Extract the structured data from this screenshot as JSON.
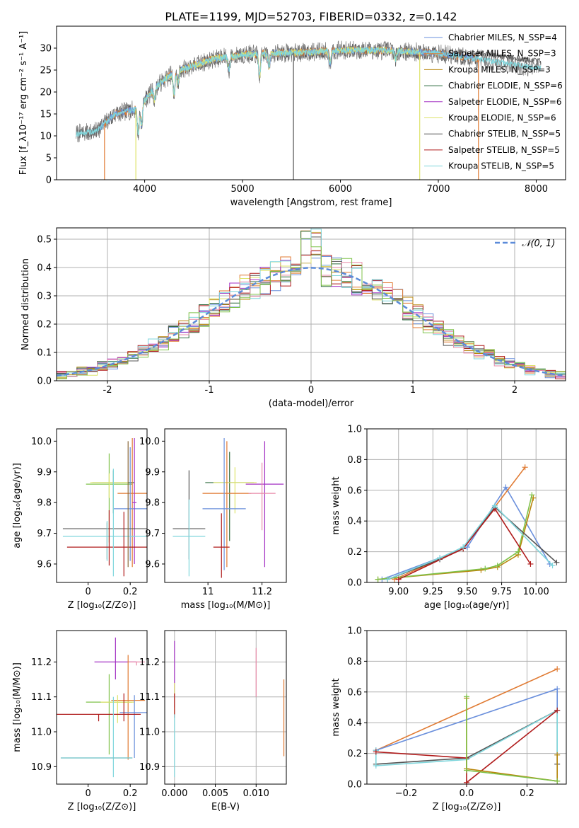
{
  "figure": {
    "title": "PLATE=1199, MJD=52703, FIBERID=0332, z=0.142"
  },
  "colors": {
    "chabrier_miles": "#6a8fdc",
    "salpeter_miles": "#e07a32",
    "kroupa_miles": "#b8860b",
    "chabrier_elodie": "#2e6b3f",
    "salpeter_elodie": "#a431c4",
    "kroupa_elodie": "#dde36a",
    "chabrier_stelib": "#555555",
    "salpeter_stelib": "#b01c1c",
    "kroupa_stelib": "#7fd6dc",
    "extra_pink": "#e88aa8",
    "extra_green": "#7fc24a",
    "extra_brown": "#8b6a3a",
    "normal_curve": "#5b8bd9",
    "grid": "#b0b0b0",
    "spectrum_gray": "#777777"
  },
  "chart_data": [
    {
      "id": "spectrum",
      "type": "line",
      "xlabel": "wavelength [Angstrom, rest frame]",
      "ylabel": "Flux [f_λ10⁻¹⁷ erg cm⁻² s⁻¹ A⁻¹]",
      "xlim": [
        3100,
        8300
      ],
      "ylim": [
        0,
        35
      ],
      "xticks": [
        4000,
        5000,
        6000,
        7000,
        8000
      ],
      "yticks": [
        0,
        5,
        10,
        15,
        20,
        25,
        30
      ],
      "grid": false,
      "legend_position": "top-right",
      "legend": [
        "Chabrier MILES, N_SSP=4",
        "Salpeter MILES, N_SSP=3",
        "Kroupa MILES, N_SSP=3",
        "Chabrier ELODIE, N_SSP=6",
        "Salpeter ELODIE, N_SSP=6",
        "Kroupa ELODIE, N_SSP=6",
        "Chabrier STELIB, N_SSP=5",
        "Salpeter STELIB, N_SSP=5",
        "Kroupa STELIB, N_SSP=5"
      ],
      "continuum": {
        "x": [
          3300,
          3500,
          3700,
          3900,
          4000,
          4100,
          4300,
          4500,
          4700,
          5000,
          5300,
          5600,
          6000,
          6500,
          7000,
          7400,
          8000
        ],
        "y": [
          10.5,
          11,
          15,
          16,
          18,
          21,
          24.5,
          26,
          27.5,
          28.5,
          28.8,
          29,
          29.5,
          29.5,
          28.8,
          27.5,
          25.5
        ]
      },
      "absorption_features": [
        {
          "x": 3934,
          "depth": 6
        },
        {
          "x": 3968,
          "depth": 5
        },
        {
          "x": 4102,
          "depth": 3
        },
        {
          "x": 4300,
          "depth": 5
        },
        {
          "x": 4340,
          "depth": 3
        },
        {
          "x": 4861,
          "depth": 3
        },
        {
          "x": 5175,
          "depth": 5
        },
        {
          "x": 5270,
          "depth": 3
        },
        {
          "x": 5893,
          "depth": 3
        },
        {
          "x": 6563,
          "depth": 2
        }
      ],
      "vertical_spikes": [
        {
          "x": 3590,
          "color": "salpeter_miles"
        },
        {
          "x": 3910,
          "color": "kroupa_elodie"
        },
        {
          "x": 5520,
          "color": "chabrier_stelib"
        },
        {
          "x": 6810,
          "color": "kroupa_elodie"
        },
        {
          "x": 7410,
          "color": "salpeter_miles"
        }
      ]
    },
    {
      "id": "residuals",
      "type": "histogram",
      "xlabel": "(data-model)/error",
      "ylabel": "Normed distribution",
      "xlim": [
        -2.5,
        2.5
      ],
      "ylim": [
        0,
        0.54
      ],
      "xticks": [
        -2,
        -1,
        0,
        1,
        2
      ],
      "yticks": [
        0.0,
        0.1,
        0.2,
        0.3,
        0.4,
        0.5
      ],
      "grid": true,
      "legend_position": "top-right",
      "legend": [
        "𝒩(0, 1)"
      ],
      "bin_width": 0.1
    },
    {
      "id": "age_vs_Z",
      "type": "errorbar",
      "xlabel": "Z [log₁₀(Z/Z⊙)]",
      "ylabel": "age  [log₁₀(age/yr)]",
      "xlim": [
        -0.15,
        0.28
      ],
      "ylim": [
        9.54,
        10.04
      ],
      "xticks": [
        0.0,
        0.2
      ],
      "yticks": [
        9.6,
        9.7,
        9.8,
        9.9,
        10.0
      ],
      "points": [
        {
          "x": 0.12,
          "y": 9.865,
          "xerr": 0.1,
          "yerr_lo": 0.1,
          "yerr_hi": 0.04,
          "color": "chabrier_elodie"
        },
        {
          "x": 0.1,
          "y": 9.86,
          "xerr": 0.11,
          "yerr_lo": 0.19,
          "yerr_hi": 0.1,
          "color": "extra_green"
        },
        {
          "x": 0.1,
          "y": 9.865,
          "xerr": 0.09,
          "yerr_lo": 0.05,
          "yerr_hi": 0.03,
          "color": "kroupa_elodie"
        },
        {
          "x": 0.21,
          "y": 9.83,
          "xerr": 0.07,
          "yerr_lo": 0.24,
          "yerr_hi": 0.18,
          "color": "salpeter_miles"
        },
        {
          "x": 0.2,
          "y": 9.78,
          "xerr": 0.08,
          "yerr_lo": 0.17,
          "yerr_hi": 0.2,
          "color": "chabrier_miles"
        },
        {
          "x": 0.22,
          "y": 9.8,
          "xerr": 0.01,
          "yerr_lo": 0.2,
          "yerr_hi": 0.21,
          "color": "salpeter_elodie"
        },
        {
          "x": 0.09,
          "y": 9.715,
          "xerr": 0.21,
          "yerr_lo": 0.1,
          "yerr_hi": 0.02,
          "color": "chabrier_stelib"
        },
        {
          "x": 0.09,
          "y": 9.69,
          "xerr": 0.21,
          "yerr_lo": 0.08,
          "yerr_hi": 0.05,
          "color": "kroupa_stelib"
        },
        {
          "x": 0.1,
          "y": 9.655,
          "xerr": 0.2,
          "yerr_lo": 0.06,
          "yerr_hi": 0.12,
          "color": "salpeter_stelib"
        },
        {
          "x": 0.12,
          "y": 9.7,
          "xerr": 0.0,
          "yerr_lo": 0.14,
          "yerr_hi": 0.21,
          "color": "kroupa_stelib"
        },
        {
          "x": 0.17,
          "y": 9.66,
          "xerr": 0.0,
          "yerr_lo": 0.1,
          "yerr_hi": 0.11,
          "color": "salpeter_stelib"
        },
        {
          "x": 0.19,
          "y": 9.8,
          "xerr": 0.0,
          "yerr_lo": 0.21,
          "yerr_hi": 0.2,
          "color": "extra_brown"
        }
      ]
    },
    {
      "id": "age_vs_mass",
      "type": "errorbar",
      "xlabel": "mass [log₁₀(M/M⊙)]",
      "ylabel": "",
      "xlim": [
        10.84,
        11.29
      ],
      "ylim": [
        9.54,
        10.04
      ],
      "xticks": [
        11.0,
        11.2
      ],
      "yticks": [
        9.6,
        9.7,
        9.8,
        9.9,
        10.0
      ],
      "points": [
        {
          "x": 11.08,
          "y": 9.865,
          "xerr": 0.09,
          "yerr_lo": 0.19,
          "yerr_hi": 0.1,
          "color": "chabrier_elodie"
        },
        {
          "x": 11.1,
          "y": 9.865,
          "xerr": 0.08,
          "yerr_lo": 0.1,
          "yerr_hi": 0.05,
          "color": "kroupa_elodie"
        },
        {
          "x": 11.07,
          "y": 9.83,
          "xerr": 0.09,
          "yerr_lo": 0.24,
          "yerr_hi": 0.17,
          "color": "salpeter_miles"
        },
        {
          "x": 11.06,
          "y": 9.78,
          "xerr": 0.08,
          "yerr_lo": 0.2,
          "yerr_hi": 0.23,
          "color": "chabrier_miles"
        },
        {
          "x": 11.21,
          "y": 9.86,
          "xerr": 0.07,
          "yerr_lo": 0.27,
          "yerr_hi": 0.14,
          "color": "salpeter_elodie"
        },
        {
          "x": 11.2,
          "y": 9.83,
          "xerr": 0.05,
          "yerr_lo": 0.12,
          "yerr_hi": 0.1,
          "color": "extra_pink"
        },
        {
          "x": 10.93,
          "y": 9.715,
          "xerr": 0.06,
          "yerr_lo": 0.1,
          "yerr_hi": 0.19,
          "color": "chabrier_stelib"
        },
        {
          "x": 10.93,
          "y": 9.69,
          "xerr": 0.06,
          "yerr_lo": 0.13,
          "yerr_hi": 0.12,
          "color": "kroupa_stelib"
        },
        {
          "x": 11.05,
          "y": 9.655,
          "xerr": 0.03,
          "yerr_lo": 0.1,
          "yerr_hi": 0.11,
          "color": "salpeter_stelib"
        }
      ]
    },
    {
      "id": "mass_weight_vs_age",
      "type": "line",
      "xlabel": "age  [log₁₀(age/yr)]",
      "ylabel": "mass weight",
      "xlim": [
        8.77,
        10.22
      ],
      "ylim": [
        0,
        1.0
      ],
      "xticks": [
        9.0,
        9.25,
        9.5,
        9.75,
        10.0
      ],
      "xticklabels": [
        "9.00",
        "9.25",
        "9.50",
        "9.75",
        "10.00"
      ],
      "yticks": [
        0.0,
        0.2,
        0.4,
        0.6,
        0.8,
        1.0
      ],
      "grid": true,
      "series": [
        {
          "color": "chabrier_miles",
          "x": [
            8.88,
            9.3,
            9.5,
            9.78,
            10.1
          ],
          "y": [
            0.02,
            0.16,
            0.23,
            0.62,
            0.12
          ]
        },
        {
          "color": "salpeter_miles",
          "x": [
            8.97,
            9.47,
            9.92
          ],
          "y": [
            0.02,
            0.22,
            0.75
          ]
        },
        {
          "color": "kroupa_miles",
          "x": [
            8.85,
            9.6,
            9.72,
            9.87,
            9.98
          ],
          "y": [
            0.02,
            0.08,
            0.1,
            0.18,
            0.55
          ]
        },
        {
          "color": "extra_green",
          "x": [
            8.85,
            9.63,
            9.72,
            9.87,
            9.97
          ],
          "y": [
            0.02,
            0.09,
            0.11,
            0.2,
            0.57
          ]
        },
        {
          "color": "chabrier_stelib",
          "x": [
            8.92,
            9.3,
            9.47,
            9.7,
            10.15
          ],
          "y": [
            0.02,
            0.15,
            0.22,
            0.49,
            0.13
          ]
        },
        {
          "color": "salpeter_stelib",
          "x": [
            9.0,
            9.47,
            9.7,
            9.96
          ],
          "y": [
            0.02,
            0.22,
            0.48,
            0.12
          ]
        },
        {
          "color": "kroupa_stelib",
          "x": [
            8.92,
            9.3,
            9.47,
            9.7,
            10.12
          ],
          "y": [
            0.02,
            0.16,
            0.23,
            0.5,
            0.11
          ]
        }
      ]
    },
    {
      "id": "mass_vs_Z",
      "type": "errorbar",
      "xlabel": "Z [log₁₀(Z/Z⊙)]",
      "ylabel": "mass [log₁₀(M/M⊙)]",
      "xlim": [
        -0.15,
        0.28
      ],
      "ylim": [
        10.85,
        11.29
      ],
      "xticks": [
        0.0,
        0.2
      ],
      "yticks": [
        10.9,
        11.0,
        11.1,
        11.2
      ],
      "points": [
        {
          "x": 0.13,
          "y": 11.2,
          "xerr": 0.1,
          "yerr_lo": 0.05,
          "yerr_hi": 0.07,
          "color": "salpeter_elodie"
        },
        {
          "x": 0.23,
          "y": 11.2,
          "xerr": 0.04,
          "yerr_lo": 0.01,
          "yerr_hi": 0.0,
          "color": "extra_pink"
        },
        {
          "x": 0.19,
          "y": 11.09,
          "xerr": 0.08,
          "yerr_lo": 0.17,
          "yerr_hi": 0.13,
          "color": "salpeter_miles"
        },
        {
          "x": 0.1,
          "y": 11.085,
          "xerr": 0.11,
          "yerr_lo": 0.15,
          "yerr_hi": 0.08,
          "color": "extra_green"
        },
        {
          "x": 0.14,
          "y": 11.085,
          "xerr": 0.08,
          "yerr_lo": 0.06,
          "yerr_hi": 0.02,
          "color": "kroupa_elodie"
        },
        {
          "x": 0.22,
          "y": 11.055,
          "xerr": 0.07,
          "yerr_lo": 0.13,
          "yerr_hi": 0.05,
          "color": "chabrier_miles"
        },
        {
          "x": 0.05,
          "y": 11.05,
          "xerr": 0.2,
          "yerr_lo": 0.02,
          "yerr_hi": 0.0,
          "color": "salpeter_stelib"
        },
        {
          "x": 0.17,
          "y": 11.05,
          "xerr": 0.0,
          "yerr_lo": 0.02,
          "yerr_hi": 0.06,
          "color": "salpeter_stelib"
        },
        {
          "x": 0.12,
          "y": 11.0,
          "xerr": 0.0,
          "yerr_lo": 0.13,
          "yerr_hi": 0.1,
          "color": "kroupa_stelib"
        },
        {
          "x": 0.04,
          "y": 10.925,
          "xerr": 0.17,
          "yerr_lo": 0.0,
          "yerr_hi": 0.0,
          "color": "chabrier_stelib"
        },
        {
          "x": 0.04,
          "y": 10.925,
          "xerr": 0.17,
          "yerr_lo": 0.0,
          "yerr_hi": 0.0,
          "color": "kroupa_stelib"
        }
      ]
    },
    {
      "id": "mass_vs_ebv",
      "type": "errorbar",
      "xlabel": "E(B-V)",
      "ylabel": "",
      "xlim": [
        -0.0012,
        0.0137
      ],
      "ylim": [
        10.85,
        11.29
      ],
      "xticks": [
        0.0,
        0.005,
        0.01
      ],
      "xticklabels": [
        "0.000",
        "0.005",
        "0.010"
      ],
      "yticks": [
        10.9,
        11.0,
        11.1,
        11.2
      ],
      "grid": true,
      "points": [
        {
          "x": 0.0,
          "y": 11.14,
          "xerr": 0.0,
          "yerr_lo": 0.07,
          "yerr_hi": 0.12,
          "color": "salpeter_elodie"
        },
        {
          "x": 0.0,
          "y": 11.08,
          "xerr": 0.0,
          "yerr_lo": 0.03,
          "yerr_hi": 0.06,
          "color": "kroupa_elodie"
        },
        {
          "x": 0.0,
          "y": 11.07,
          "xerr": 0.0,
          "yerr_lo": 0.03,
          "yerr_hi": 0.04,
          "color": "salpeter_stelib"
        },
        {
          "x": 0.0,
          "y": 10.97,
          "xerr": 0.0,
          "yerr_lo": 0.1,
          "yerr_hi": 0.08,
          "color": "kroupa_stelib"
        },
        {
          "x": 0.01,
          "y": 11.19,
          "xerr": 0.0,
          "yerr_lo": 0.09,
          "yerr_hi": 0.05,
          "color": "extra_pink"
        },
        {
          "x": 0.0134,
          "y": 11.04,
          "xerr": 0.0,
          "yerr_lo": 0.11,
          "yerr_hi": 0.11,
          "color": "salpeter_miles"
        }
      ]
    },
    {
      "id": "mass_weight_vs_Z",
      "type": "line",
      "xlabel": "Z [log₁₀(Z/Z⊙)]",
      "ylabel": "mass weight",
      "xlim": [
        -0.33,
        0.33
      ],
      "ylim": [
        0,
        1.0
      ],
      "xticks": [
        -0.2,
        0.0,
        0.2
      ],
      "xticklabels": [
        "−0.2",
        "0.0",
        "0.2"
      ],
      "yticks": [
        0.0,
        0.2,
        0.4,
        0.6,
        0.8,
        1.0
      ],
      "grid": true,
      "series": [
        {
          "color": "salpeter_miles",
          "x": [
            -0.3,
            0.3
          ],
          "y": [
            0.22,
            0.75
          ]
        },
        {
          "color": "chabrier_miles",
          "x": [
            -0.3,
            0.3,
            0.3
          ],
          "y": [
            0.22,
            0.62,
            0.48
          ]
        },
        {
          "color": "chabrier_stelib",
          "x": [
            -0.3,
            0.0,
            0.3,
            0.3
          ],
          "y": [
            0.13,
            0.17,
            0.48,
            0.13
          ]
        },
        {
          "color": "kroupa_stelib",
          "x": [
            -0.3,
            -0.3,
            0.0,
            0.3,
            0.3
          ],
          "y": [
            0.22,
            0.12,
            0.16,
            0.48,
            0.02
          ]
        },
        {
          "color": "salpeter_stelib",
          "x": [
            -0.3,
            0.0,
            0.0,
            0.3
          ],
          "y": [
            0.21,
            0.17,
            0.01,
            0.48
          ]
        },
        {
          "color": "kroupa_miles",
          "x": [
            0.0,
            0.0,
            0.3,
            0.3
          ],
          "y": [
            0.56,
            0.1,
            0.02,
            0.19
          ]
        },
        {
          "color": "extra_green",
          "x": [
            0.0,
            0.0,
            0.3
          ],
          "y": [
            0.57,
            0.09,
            0.02
          ]
        }
      ]
    }
  ]
}
